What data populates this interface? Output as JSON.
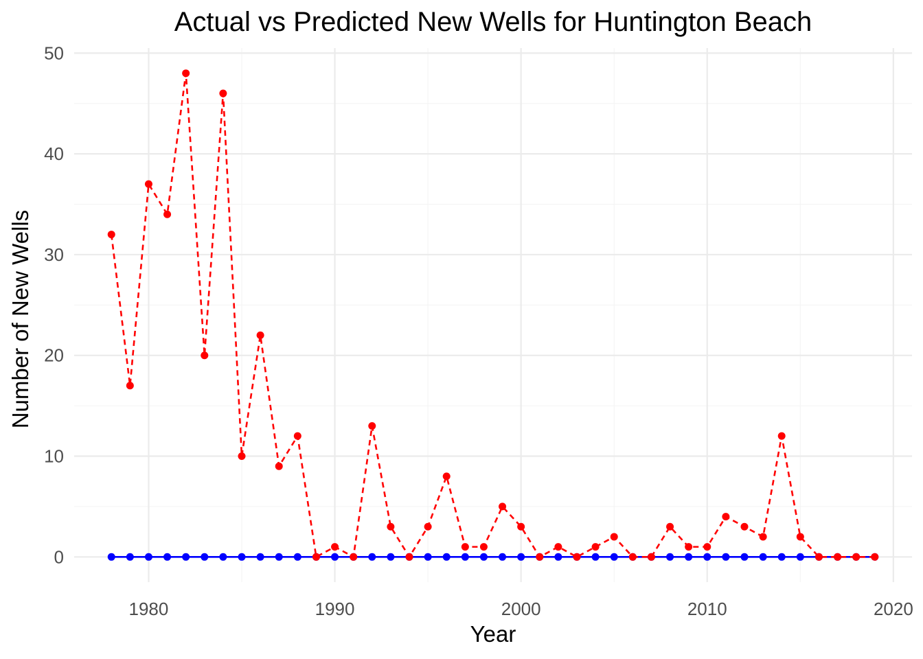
{
  "chart_data": {
    "type": "line",
    "title": "Actual vs Predicted New Wells for Huntington Beach",
    "xlabel": "Year",
    "ylabel": "Number of New Wells",
    "xlim": [
      1976,
      2021
    ],
    "ylim": [
      -2.5,
      50.5
    ],
    "x_ticks": [
      1980,
      1990,
      2000,
      2010,
      2020
    ],
    "y_ticks": [
      0,
      10,
      20,
      30,
      40,
      50
    ],
    "grid": true,
    "legend": "none",
    "x": [
      1978,
      1979,
      1980,
      1981,
      1982,
      1983,
      1984,
      1985,
      1986,
      1987,
      1988,
      1989,
      1990,
      1991,
      1992,
      1993,
      1994,
      1995,
      1996,
      1997,
      1998,
      1999,
      2000,
      2001,
      2002,
      2003,
      2004,
      2005,
      2006,
      2007,
      2008,
      2009,
      2010,
      2011,
      2012,
      2013,
      2014,
      2015,
      2016,
      2017,
      2018,
      2019
    ],
    "series": [
      {
        "color": "#0000ff",
        "line": "solid",
        "values": [
          0,
          0,
          0,
          0,
          0,
          0,
          0,
          0,
          0,
          0,
          0,
          0,
          0,
          0,
          0,
          0,
          0,
          0,
          0,
          0,
          0,
          0,
          0,
          0,
          0,
          0,
          0,
          0,
          0,
          0,
          0,
          0,
          0,
          0,
          0,
          0,
          0,
          0,
          0,
          0,
          0,
          0
        ]
      },
      {
        "color": "#ff0000",
        "line": "dashed",
        "values": [
          32,
          17,
          37,
          34,
          48,
          20,
          46,
          10,
          22,
          9,
          12,
          0,
          1,
          0,
          13,
          3,
          0,
          3,
          8,
          1,
          1,
          5,
          3,
          0,
          1,
          0,
          1,
          2,
          0,
          0,
          3,
          1,
          1,
          4,
          3,
          2,
          12,
          2,
          0,
          0,
          0,
          0
        ]
      }
    ]
  }
}
